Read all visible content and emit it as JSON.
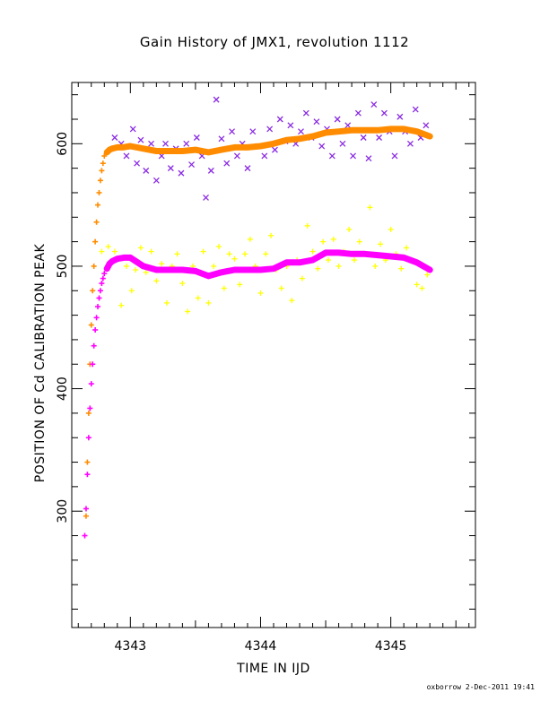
{
  "chart_data": {
    "type": "scatter",
    "title": "Gain History of JMX1, revolution 1112",
    "xlabel": "TIME IN IJD",
    "ylabel": "POSITION OF Cd CALIBRATION PEAK",
    "xlim": [
      4342.55,
      4345.65
    ],
    "ylim": [
      205,
      650
    ],
    "xticks": [
      4343,
      4344,
      4345
    ],
    "yticks": [
      300,
      400,
      500,
      600
    ],
    "grid": false,
    "legend": "none",
    "series": [
      {
        "marker": "x",
        "color": "#8a2be2",
        "points": [
          [
            4342.88,
            605
          ],
          [
            4342.93,
            600
          ],
          [
            4342.97,
            590
          ],
          [
            4343.02,
            612
          ],
          [
            4343.05,
            584
          ],
          [
            4343.08,
            603
          ],
          [
            4343.12,
            578
          ],
          [
            4343.16,
            600
          ],
          [
            4343.2,
            570
          ],
          [
            4343.24,
            590
          ],
          [
            4343.27,
            600
          ],
          [
            4343.31,
            580
          ],
          [
            4343.35,
            596
          ],
          [
            4343.39,
            576
          ],
          [
            4343.43,
            600
          ],
          [
            4343.47,
            583
          ],
          [
            4343.51,
            605
          ],
          [
            4343.55,
            590
          ],
          [
            4343.58,
            556
          ],
          [
            4343.62,
            578
          ],
          [
            4343.66,
            636
          ],
          [
            4343.7,
            604
          ],
          [
            4343.74,
            584
          ],
          [
            4343.78,
            610
          ],
          [
            4343.82,
            590
          ],
          [
            4343.86,
            600
          ],
          [
            4343.9,
            580
          ],
          [
            4343.94,
            610
          ],
          [
            4343.98,
            598
          ],
          [
            4344.03,
            590
          ],
          [
            4344.07,
            612
          ],
          [
            4344.11,
            595
          ],
          [
            4344.15,
            620
          ],
          [
            4344.19,
            602
          ],
          [
            4344.23,
            615
          ],
          [
            4344.27,
            600
          ],
          [
            4344.31,
            610
          ],
          [
            4344.35,
            625
          ],
          [
            4344.39,
            605
          ],
          [
            4344.43,
            618
          ],
          [
            4344.47,
            598
          ],
          [
            4344.51,
            612
          ],
          [
            4344.55,
            590
          ],
          [
            4344.59,
            620
          ],
          [
            4344.63,
            600
          ],
          [
            4344.67,
            615
          ],
          [
            4344.71,
            590
          ],
          [
            4344.75,
            625
          ],
          [
            4344.79,
            605
          ],
          [
            4344.83,
            588
          ],
          [
            4344.87,
            632
          ],
          [
            4344.91,
            605
          ],
          [
            4344.95,
            625
          ],
          [
            4344.99,
            610
          ],
          [
            4345.03,
            590
          ],
          [
            4345.07,
            622
          ],
          [
            4345.11,
            610
          ],
          [
            4345.15,
            600
          ],
          [
            4345.19,
            628
          ],
          [
            4345.23,
            605
          ],
          [
            4345.27,
            615
          ]
        ]
      },
      {
        "marker": "+",
        "color": "#ffff00",
        "points": [
          [
            4342.78,
            512
          ],
          [
            4342.83,
            516
          ],
          [
            4342.88,
            512
          ],
          [
            4342.93,
            468
          ],
          [
            4342.97,
            500
          ],
          [
            4343.01,
            480
          ],
          [
            4343.04,
            497
          ],
          [
            4343.08,
            515
          ],
          [
            4343.12,
            495
          ],
          [
            4343.16,
            512
          ],
          [
            4343.2,
            488
          ],
          [
            4343.24,
            502
          ],
          [
            4343.28,
            470
          ],
          [
            4343.32,
            500
          ],
          [
            4343.36,
            510
          ],
          [
            4343.4,
            486
          ],
          [
            4343.44,
            463
          ],
          [
            4343.48,
            500
          ],
          [
            4343.52,
            474
          ],
          [
            4343.56,
            512
          ],
          [
            4343.6,
            470
          ],
          [
            4343.64,
            500
          ],
          [
            4343.68,
            516
          ],
          [
            4343.72,
            482
          ],
          [
            4343.76,
            510
          ],
          [
            4343.8,
            506
          ],
          [
            4343.84,
            485
          ],
          [
            4343.88,
            510
          ],
          [
            4343.92,
            522
          ],
          [
            4343.96,
            500
          ],
          [
            4344.0,
            478
          ],
          [
            4344.04,
            510
          ],
          [
            4344.08,
            525
          ],
          [
            4344.12,
            497
          ],
          [
            4344.16,
            482
          ],
          [
            4344.2,
            500
          ],
          [
            4344.24,
            472
          ],
          [
            4344.28,
            505
          ],
          [
            4344.32,
            490
          ],
          [
            4344.36,
            533
          ],
          [
            4344.4,
            512
          ],
          [
            4344.44,
            498
          ],
          [
            4344.48,
            520
          ],
          [
            4344.52,
            505
          ],
          [
            4344.56,
            522
          ],
          [
            4344.6,
            500
          ],
          [
            4344.64,
            512
          ],
          [
            4344.68,
            530
          ],
          [
            4344.72,
            505
          ],
          [
            4344.76,
            520
          ],
          [
            4344.8,
            510
          ],
          [
            4344.84,
            548
          ],
          [
            4344.88,
            500
          ],
          [
            4344.92,
            518
          ],
          [
            4344.96,
            505
          ],
          [
            4345.0,
            530
          ],
          [
            4345.04,
            510
          ],
          [
            4345.08,
            498
          ],
          [
            4345.12,
            515
          ],
          [
            4345.16,
            505
          ],
          [
            4345.2,
            485
          ],
          [
            4345.24,
            482
          ],
          [
            4345.28,
            493
          ]
        ]
      },
      {
        "marker": "+",
        "color": "#ff8c00",
        "points": [
          [
            4342.66,
            296
          ],
          [
            4342.67,
            340
          ],
          [
            4342.68,
            380
          ],
          [
            4342.69,
            420
          ],
          [
            4342.7,
            452
          ],
          [
            4342.71,
            480
          ],
          [
            4342.72,
            500
          ],
          [
            4342.73,
            520
          ],
          [
            4342.74,
            536
          ],
          [
            4342.75,
            550
          ],
          [
            4342.76,
            560
          ],
          [
            4342.77,
            570
          ],
          [
            4342.78,
            578
          ],
          [
            4342.79,
            584
          ],
          [
            4342.8,
            590
          ],
          [
            4342.82,
            593
          ],
          [
            4342.84,
            595
          ],
          [
            4342.86,
            596
          ],
          [
            4342.9,
            597
          ],
          [
            4342.94,
            597
          ],
          [
            4343.0,
            598
          ],
          [
            4343.1,
            596
          ],
          [
            4343.2,
            594
          ],
          [
            4343.3,
            594
          ],
          [
            4343.4,
            594
          ],
          [
            4343.5,
            595
          ],
          [
            4343.6,
            593
          ],
          [
            4343.7,
            595
          ],
          [
            4343.8,
            597
          ],
          [
            4343.9,
            597
          ],
          [
            4344.0,
            598
          ],
          [
            4344.1,
            600
          ],
          [
            4344.2,
            603
          ],
          [
            4344.3,
            604
          ],
          [
            4344.4,
            606
          ],
          [
            4344.5,
            609
          ],
          [
            4344.6,
            610
          ],
          [
            4344.7,
            611
          ],
          [
            4344.8,
            611
          ],
          [
            4344.9,
            611
          ],
          [
            4345.0,
            612
          ],
          [
            4345.1,
            612
          ],
          [
            4345.2,
            610
          ],
          [
            4345.3,
            606
          ]
        ]
      },
      {
        "marker": "+",
        "color": "#ff00ff",
        "points": [
          [
            4342.65,
            280
          ],
          [
            4342.66,
            302
          ],
          [
            4342.67,
            330
          ],
          [
            4342.68,
            360
          ],
          [
            4342.69,
            384
          ],
          [
            4342.7,
            404
          ],
          [
            4342.71,
            420
          ],
          [
            4342.72,
            435
          ],
          [
            4342.73,
            448
          ],
          [
            4342.74,
            458
          ],
          [
            4342.75,
            467
          ],
          [
            4342.76,
            474
          ],
          [
            4342.77,
            480
          ],
          [
            4342.78,
            486
          ],
          [
            4342.79,
            490
          ],
          [
            4342.8,
            494
          ],
          [
            4342.82,
            498
          ],
          [
            4342.84,
            502
          ],
          [
            4342.86,
            504
          ],
          [
            4342.9,
            506
          ],
          [
            4342.95,
            507
          ],
          [
            4343.0,
            507
          ],
          [
            4343.1,
            500
          ],
          [
            4343.2,
            497
          ],
          [
            4343.3,
            497
          ],
          [
            4343.4,
            497
          ],
          [
            4343.5,
            496
          ],
          [
            4343.6,
            492
          ],
          [
            4343.7,
            495
          ],
          [
            4343.8,
            497
          ],
          [
            4343.9,
            497
          ],
          [
            4344.0,
            497
          ],
          [
            4344.1,
            498
          ],
          [
            4344.2,
            503
          ],
          [
            4344.3,
            503
          ],
          [
            4344.4,
            505
          ],
          [
            4344.5,
            511
          ],
          [
            4344.6,
            511
          ],
          [
            4344.7,
            510
          ],
          [
            4344.8,
            510
          ],
          [
            4344.9,
            509
          ],
          [
            4345.0,
            508
          ],
          [
            4345.1,
            507
          ],
          [
            4345.2,
            503
          ],
          [
            4345.3,
            497
          ]
        ]
      }
    ]
  },
  "footer": "oxborrow  2-Dec-2011 19:41"
}
